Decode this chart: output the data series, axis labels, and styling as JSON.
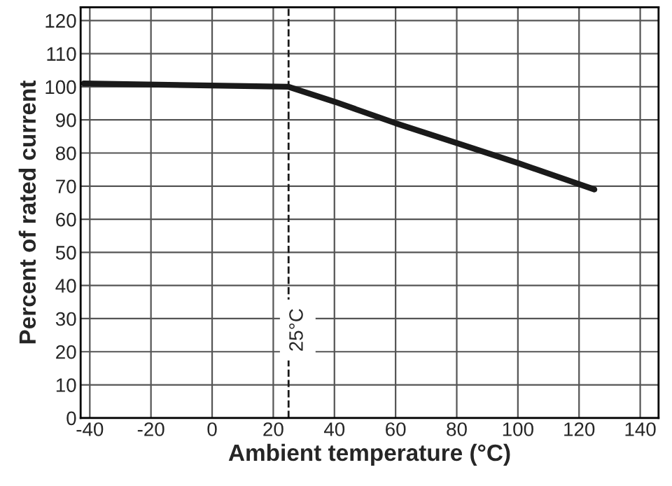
{
  "chart_data": {
    "type": "line",
    "xlabel": "Ambient temperature (°C)",
    "ylabel": "Percent of rated current",
    "x": [
      -42,
      25,
      40,
      60,
      80,
      100,
      125
    ],
    "series": [
      {
        "color": "#1a1a1a",
        "values": [
          101,
          100,
          95.5,
          89,
          83,
          77,
          69
        ]
      }
    ],
    "xlim": [
      -43,
      146
    ],
    "ylim": [
      0,
      124
    ],
    "xticks": [
      -40,
      -20,
      0,
      20,
      40,
      60,
      80,
      100,
      120,
      140
    ],
    "yticks": [
      0,
      10,
      20,
      30,
      40,
      50,
      60,
      70,
      80,
      90,
      100,
      110,
      120
    ],
    "grid": true,
    "marker": "none",
    "line_style": "solid",
    "ref_lines": [
      {
        "axis": "x",
        "value": 25,
        "label": "25°C",
        "line_style": "dashed",
        "color": "#1a1a1a"
      }
    ]
  }
}
